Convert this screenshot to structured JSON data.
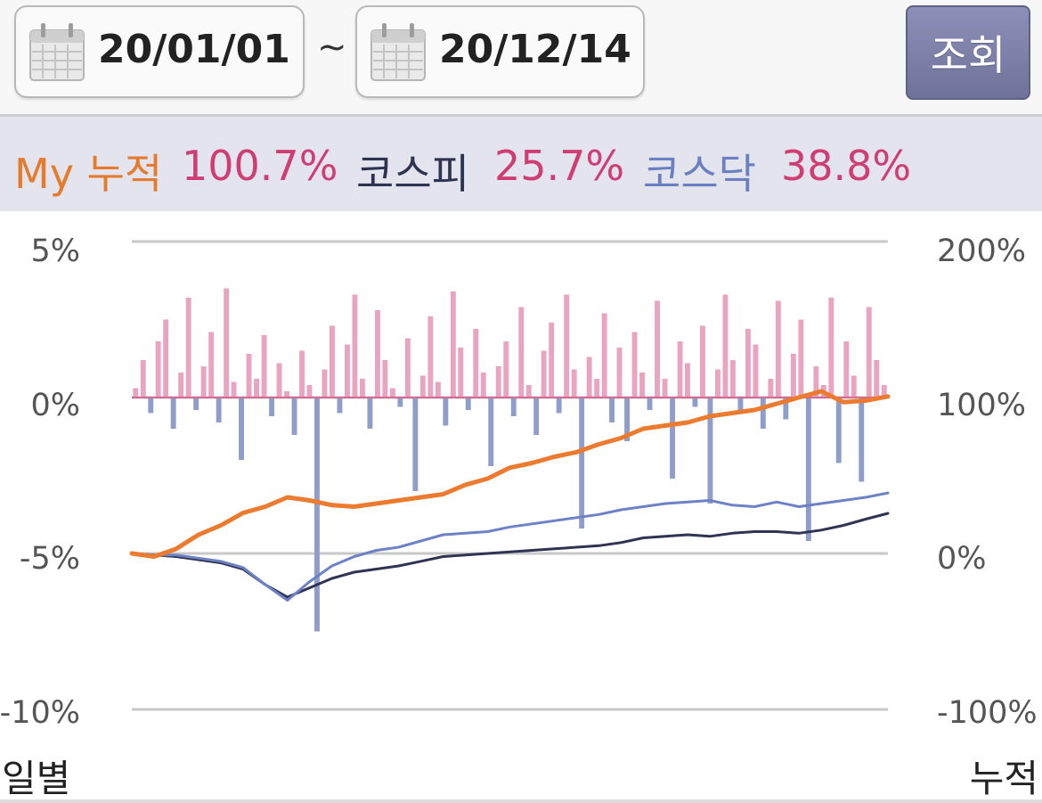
{
  "date_range": {
    "start": "20/01/01",
    "separator": "~",
    "end": "20/12/14",
    "search_label": "조회"
  },
  "summary": {
    "my_label": "My 누적",
    "my_value": "100.7%",
    "kospi_label": "코스피",
    "kospi_value": "25.7%",
    "kosdaq_label": "코스닥",
    "kosdaq_value": "38.8%"
  },
  "axes": {
    "left_ticks": [
      "5%",
      "0%",
      "-5%",
      "-10%"
    ],
    "right_ticks": [
      "200%",
      "100%",
      "0%",
      "-100%"
    ],
    "left_caption": "일별",
    "right_caption": "누적"
  },
  "colors": {
    "my": "#ec7a2f",
    "kospi": "#2f3452",
    "kosdaq": "#6d82c6",
    "bar_pos": "#e8a4c0",
    "bar_neg": "#8f9dcb",
    "grid": "#c8c8c8",
    "value": "#cf3d72"
  },
  "chart_data": {
    "type": "bar+line",
    "period": [
      "20/01/01",
      "20/12/14"
    ],
    "left_axis": {
      "label": "일별",
      "ylim": [
        -10,
        5
      ],
      "unit": "%"
    },
    "right_axis": {
      "label": "누적",
      "ylim": [
        -100,
        200
      ],
      "unit": "%"
    },
    "series": [
      {
        "name": "My 누적",
        "axis": "right",
        "values": [
          0,
          -2,
          3,
          12,
          18,
          26,
          30,
          36,
          34,
          31,
          30,
          32,
          34,
          36,
          38,
          44,
          48,
          55,
          58,
          62,
          65,
          70,
          74,
          80,
          82,
          84,
          88,
          90,
          92,
          96,
          100,
          104,
          97,
          98,
          100.7
        ]
      },
      {
        "name": "코스피",
        "axis": "right",
        "values": [
          0,
          -1,
          -2,
          -4,
          -6,
          -10,
          -20,
          -28,
          -22,
          -16,
          -12,
          -10,
          -8,
          -5,
          -2,
          -1,
          0,
          1,
          2,
          3,
          4,
          5,
          7,
          10,
          11,
          12,
          11,
          13,
          14,
          14,
          13,
          15,
          18,
          22,
          25.7
        ]
      },
      {
        "name": "코스닥",
        "axis": "right",
        "values": [
          0,
          -1,
          -1,
          -3,
          -5,
          -9,
          -20,
          -30,
          -18,
          -8,
          -2,
          2,
          4,
          8,
          12,
          13,
          14,
          17,
          19,
          21,
          23,
          25,
          28,
          30,
          32,
          33,
          34,
          31,
          30,
          33,
          30,
          32,
          34,
          36,
          38.8
        ]
      }
    ],
    "daily_my_returns_percent": [
      0.3,
      1.2,
      -0.5,
      1.8,
      2.5,
      -1.0,
      0.8,
      3.2,
      -0.4,
      1.0,
      2.1,
      -0.8,
      3.5,
      0.5,
      -2.0,
      1.4,
      0.6,
      2.0,
      -0.6,
      1.1,
      0.2,
      -1.2,
      1.5,
      0.4,
      -7.5,
      0.9,
      2.3,
      -0.5,
      1.7,
      3.3,
      0.6,
      -1.0,
      2.8,
      1.2,
      0.3,
      -0.3,
      1.9,
      -3.0,
      0.7,
      2.6,
      0.5,
      -0.9,
      3.4,
      1.6,
      -0.4,
      2.2,
      0.8,
      -2.2,
      1.0,
      1.8,
      -0.6,
      2.9,
      0.4,
      -1.2,
      1.5,
      2.4,
      -0.5,
      3.3,
      0.9,
      -4.2,
      1.3,
      0.6,
      2.7,
      -0.8,
      1.6,
      -1.4,
      2.1,
      0.8,
      -0.4,
      3.1,
      0.6,
      -2.6,
      1.8,
      1.1,
      -0.3,
      2.3,
      -3.4,
      0.9,
      3.3,
      1.2,
      -0.5,
      2.2,
      1.7,
      -1.0,
      0.6,
      3.1,
      -0.7,
      1.4,
      2.5,
      -4.6,
      1.0,
      0.4,
      3.2,
      -2.1,
      1.8,
      0.7,
      -2.7,
      2.9,
      1.2,
      0.4
    ]
  }
}
